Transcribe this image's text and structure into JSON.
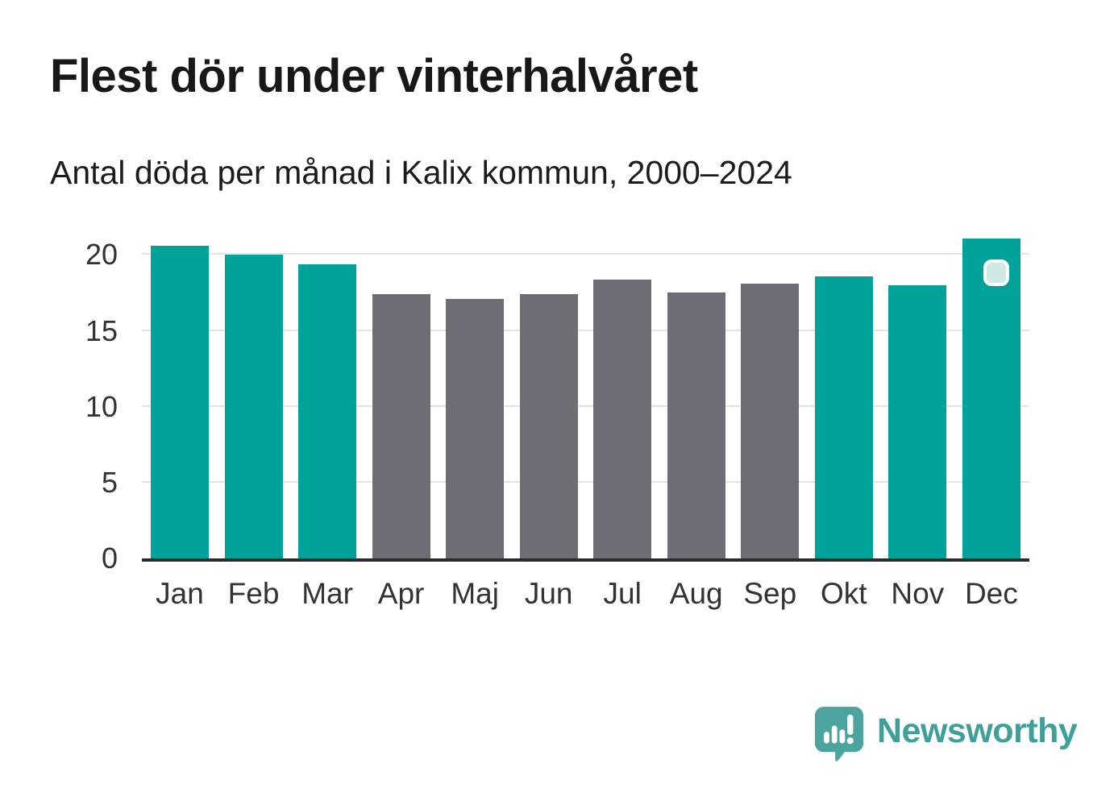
{
  "header": {
    "title": "Flest dör under vinterhalvåret",
    "subtitle": "Antal döda per månad i Kalix kommun, 2000–2024"
  },
  "chart_data": {
    "type": "bar",
    "title": "Flest dör under vinterhalvåret",
    "subtitle": "Antal döda per månad i Kalix kommun, 2000–2024",
    "categories": [
      "Jan",
      "Feb",
      "Mar",
      "Apr",
      "Maj",
      "Jun",
      "Jul",
      "Aug",
      "Sep",
      "Okt",
      "Nov",
      "Dec"
    ],
    "values": [
      20.6,
      20.0,
      19.4,
      17.4,
      17.1,
      17.4,
      18.4,
      17.5,
      18.1,
      18.6,
      18.0,
      21.1
    ],
    "bar_colors": [
      "#00a29a",
      "#00a29a",
      "#00a29a",
      "#6e6d76",
      "#6e6d76",
      "#6e6d76",
      "#6e6d76",
      "#6e6d76",
      "#6e6d76",
      "#00a29a",
      "#00a29a",
      "#00a29a"
    ],
    "winter_color": "#00a29a",
    "summer_color": "#6e6d76",
    "xlabel": "",
    "ylabel": "",
    "yticks": [
      0,
      5,
      10,
      15,
      20
    ],
    "ylim": [
      0,
      21.4
    ],
    "grid": "horizontal",
    "legend": "none",
    "axis_line_color": "#2b2b2b",
    "gridline_color": "#e4e4e4",
    "tick_label_color": "#333333",
    "highlight": {
      "category": "Dec",
      "marker": "rounded-square-badge",
      "marker_fill": "#cfe9e6",
      "marker_border": "#ffffff"
    }
  },
  "footer": {
    "brand": "Newsworthy",
    "brand_text_color": "#3fa09a",
    "brand_mark_color": "#4ba49d"
  }
}
